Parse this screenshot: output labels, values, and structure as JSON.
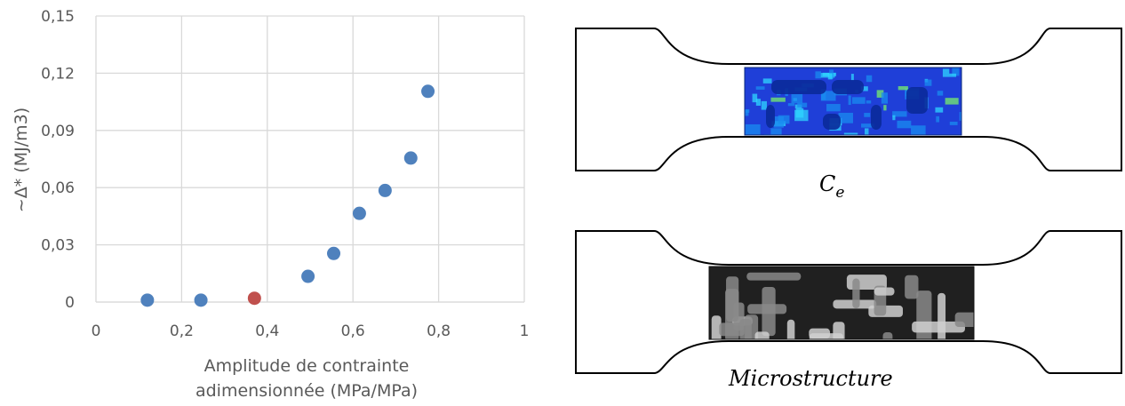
{
  "chart_data": {
    "type": "scatter",
    "xlabel_lines": [
      "Amplitude de contrainte",
      "adimensionnée (MPa/MPa)"
    ],
    "ylabel": "~Δ* (MJ/m3)",
    "xlim": [
      0,
      1
    ],
    "ylim": [
      0,
      0.15
    ],
    "x_ticks": [
      "0",
      "0,2",
      "0,4",
      "0,6",
      "0,8",
      "1"
    ],
    "x_tick_values": [
      0,
      0.2,
      0.4,
      0.6,
      0.8,
      1
    ],
    "y_ticks": [
      "0",
      "0,03",
      "0,06",
      "0,09",
      "0,12",
      "0,15"
    ],
    "y_tick_values": [
      0,
      0.03,
      0.06,
      0.09,
      0.12,
      0.15
    ],
    "grid": true,
    "series": [
      {
        "color": "#4f81bd",
        "points": [
          {
            "x": 0.12,
            "y": 0.001
          },
          {
            "x": 0.245,
            "y": 0.001
          },
          {
            "x": 0.495,
            "y": 0.0135
          },
          {
            "x": 0.555,
            "y": 0.0255
          },
          {
            "x": 0.615,
            "y": 0.0465
          },
          {
            "x": 0.675,
            "y": 0.0585
          },
          {
            "x": 0.735,
            "y": 0.0755
          },
          {
            "x": 0.775,
            "y": 0.1105
          }
        ]
      },
      {
        "color": "#c0504d",
        "points": [
          {
            "x": 0.37,
            "y": 0.002
          }
        ]
      }
    ]
  },
  "specimens": {
    "top_caption_main": "C",
    "top_caption_sub": "e",
    "bottom_caption": "Microstructure",
    "top_colors": [
      "#1f3fd8",
      "#1a8cf0",
      "#2fd6ff",
      "#0a2a9a",
      "#7af06a"
    ],
    "bottom_colors": [
      "#202020",
      "#8a8a8a",
      "#d0d0d0"
    ]
  }
}
